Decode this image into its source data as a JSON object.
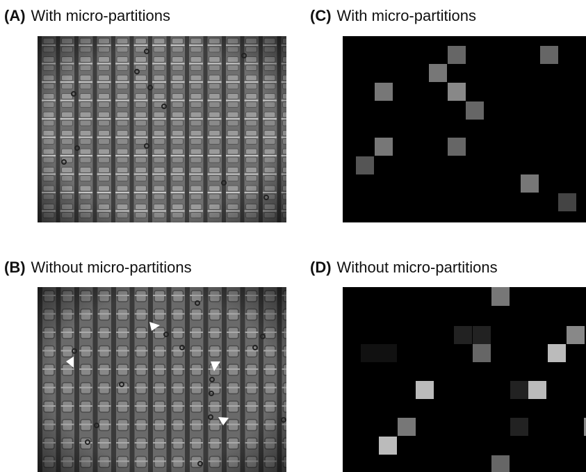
{
  "panels": [
    {
      "label": "(A)",
      "title": "With micro-partitions"
    },
    {
      "label": "(B)",
      "title": "Without micro-partitions"
    },
    {
      "label": "(C)",
      "title": "With micro-partitions"
    },
    {
      "label": "(D)",
      "title": "Without micro-partitions"
    }
  ]
}
